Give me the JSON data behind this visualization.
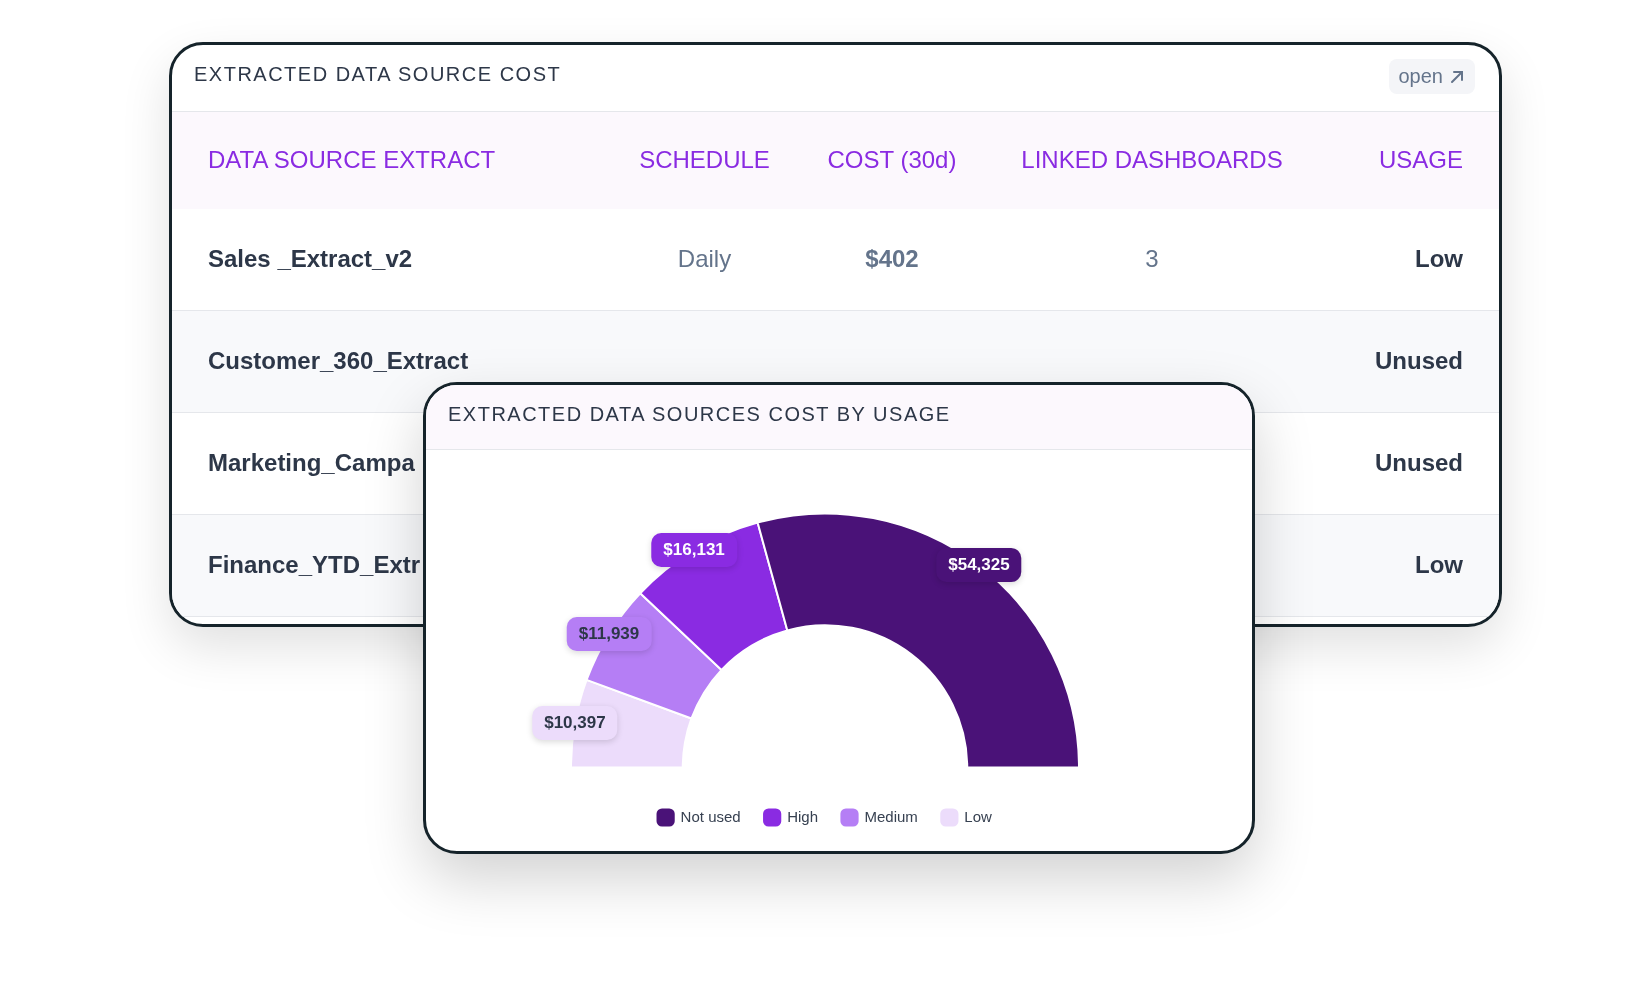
{
  "chart_data": [
    {
      "type": "other",
      "title": "EXTRACTED DATA SOURCE COST",
      "annotations": [
        "open"
      ],
      "categories": [
        "DATA SOURCE EXTRACT",
        "SCHEDULE",
        "COST (30d)",
        "LINKED DASHBOARDS",
        "USAGE"
      ],
      "cell_labels": [
        [
          "Sales _Extract_v2",
          "Daily",
          "$402",
          "3",
          "Low"
        ],
        [
          "Customer_360_Extract",
          null,
          null,
          null,
          "Unused"
        ],
        [
          "Marketing_Campa",
          null,
          null,
          null,
          "Unused"
        ],
        [
          "Finance_YTD_Extr",
          null,
          null,
          null,
          "Low"
        ]
      ]
    },
    {
      "type": "donut",
      "title": "EXTRACTED DATA SOURCES COST BY USAGE",
      "categories": [
        "Not used",
        "High",
        "Medium",
        "Low"
      ],
      "values": [
        54325,
        16131,
        11939,
        10397
      ],
      "colors": [
        "#4a1278",
        "#8a2be2",
        "#b57ef5",
        "#ecdcfb"
      ],
      "value_labels": [
        "$54,325",
        "$16,131",
        "$11,939",
        "$10,397"
      ],
      "legend": "bottom"
    }
  ]
}
